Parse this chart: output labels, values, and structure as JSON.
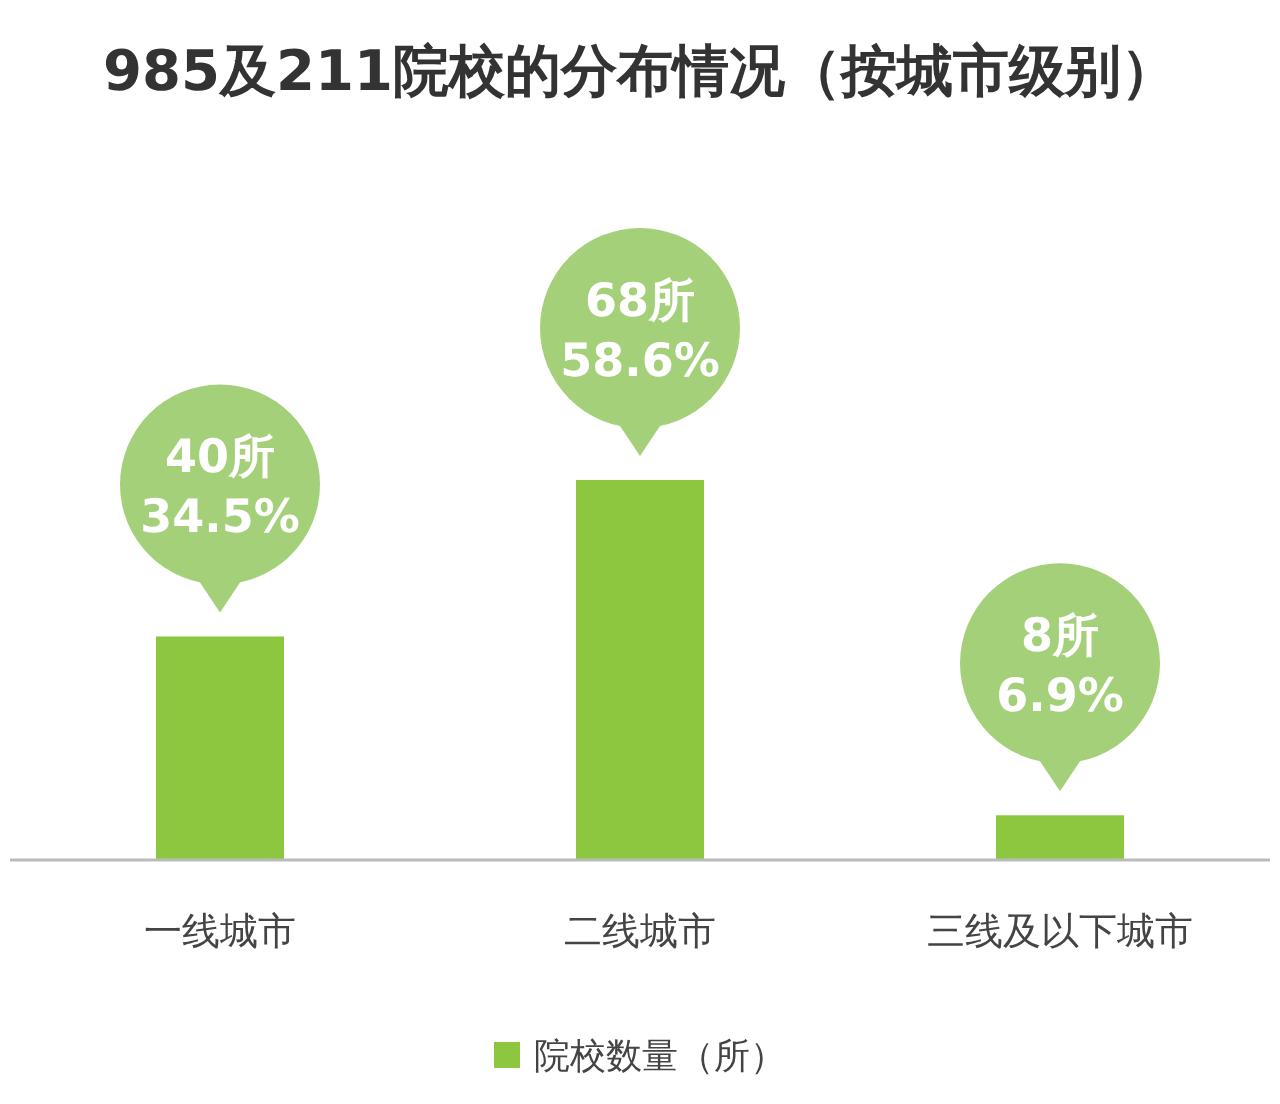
{
  "chart_data": {
    "type": "bar",
    "title": "985及211院校的分布情况（按城市级别）",
    "categories": [
      "一线城市",
      "二线城市",
      "三线及以下城市"
    ],
    "series": [
      {
        "name": "院校数量（所）",
        "color": "#8dc63f",
        "values": [
          40,
          68,
          8
        ],
        "value_labels": [
          "40所\n34.5%",
          "68所\n58.6%",
          "8所\n6.9%"
        ]
      }
    ],
    "legend": "bottom"
  }
}
